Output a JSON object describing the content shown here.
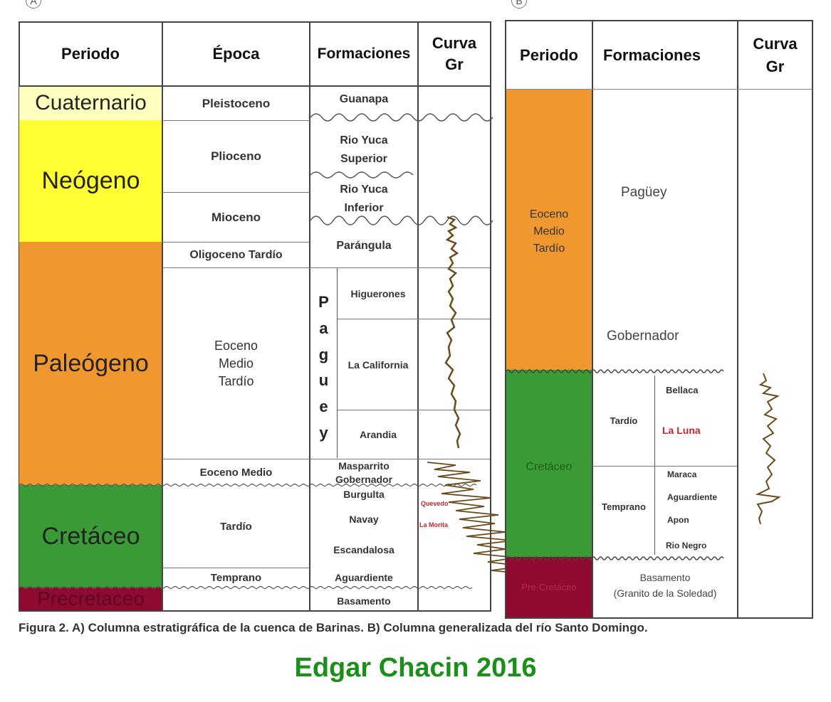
{
  "panel_a": {
    "label": "A",
    "headers": {
      "periodo": "Periodo",
      "epoca": "Época",
      "formaciones": "Formaciones",
      "curva_line1": "Curva",
      "curva_line2": "Gr"
    },
    "periods": {
      "cuaternario": "Cuaternario",
      "neogeno": "Neógeno",
      "paleogeno": "Paleógeno",
      "cretaceo": "Cretáceo",
      "precretaceo": "Precretaceo"
    },
    "epochs": {
      "pleistoceno": "Pleistoceno",
      "plioceno": "Plioceno",
      "mioceno": "Mioceno",
      "oligoceno": "Oligoceno Tardío",
      "eoceno_l1": "Eoceno",
      "eoceno_l2": "Medio",
      "eoceno_l3": "Tardío",
      "eoceno_medio": "Eoceno Medio",
      "tardio": "Tardío",
      "temprano": "Temprano"
    },
    "formations": {
      "guanapa": "Guanapa",
      "rio_yuca_sup_l1": "Rio Yuca",
      "rio_yuca_sup_l2": "Superior",
      "rio_yuca_inf_l1": "Rio Yuca",
      "rio_yuca_inf_l2": "Inferior",
      "parangula": "Parángula",
      "pagueya_letters": [
        "P",
        "a",
        "g",
        "u",
        "e",
        "y"
      ],
      "higuerones": "Higuerones",
      "la_california": "La California",
      "arandia": "Arandia",
      "masparrito": "Masparrito",
      "gobernador": "Gobernador",
      "burgulta": "Burgulta",
      "navay": "Navay",
      "escandalosa": "Escandalosa",
      "aguardiente": "Aguardiente",
      "basamento": "Basamento"
    },
    "curve_labels": {
      "quevedo": "Quevedo",
      "la_morita": "La Morita"
    }
  },
  "panel_b": {
    "label": "B",
    "headers": {
      "periodo": "Periodo",
      "formaciones": "Formaciones",
      "curva_line1": "Curva",
      "curva_line2": "Gr"
    },
    "periods": {
      "eoceno_l1": "Eoceno",
      "eoceno_l2": "Medio",
      "eoceno_l3": "Tardío",
      "cretaceo": "Cretáceo",
      "precretaceo": "Pre-Cretáceo"
    },
    "formations": {
      "paguey": "Pagüey",
      "gobernador": "Gobernador",
      "tardio": "Tardío",
      "bellaca": "Bellaca",
      "la_luna": "La Luna",
      "temprano": "Temprano",
      "maraca": "Maraca",
      "aguardiente": "Aguardiente",
      "apon": "Apon",
      "rio_negro": "Rio Negro",
      "basamento_l1": "Basamento",
      "basamento_l2": "(Granito de la Soledad)"
    }
  },
  "caption": "Figura 2. A) Columna estratigráfica de la cuenca de Barinas. B) Columna generalizada del río Santo Domingo.",
  "credit": "Edgar Chacin 2016",
  "colors": {
    "cuaternario": "#ffffc0",
    "neogeno": "#ffff33",
    "paleogeno": "#f0982f",
    "cretaceo": "#3a9a35",
    "precretaceo": "#8e0a2e",
    "credit": "#1a8f1a",
    "la_luna": "#c0282e",
    "curve": "#6b4a1a"
  }
}
